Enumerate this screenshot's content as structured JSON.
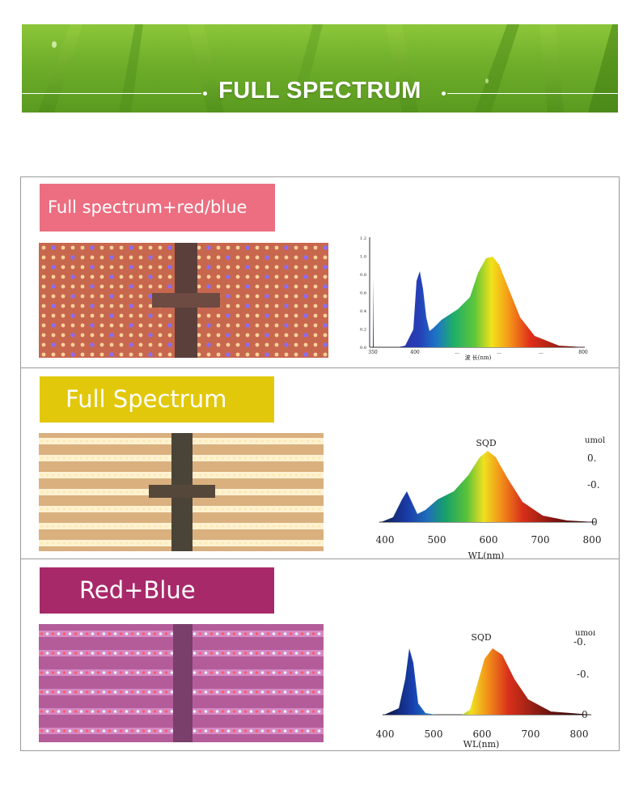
{
  "banner": {
    "title": "FULL SPECTRUM"
  },
  "colors": {
    "label1": "#ec6e80",
    "label2": "#e2c80a",
    "label3": "#a8296a",
    "banner": "#7dba30"
  },
  "panels": [
    {
      "label": "Full spectrum+red/blue",
      "chart": {
        "yticks": [
          "1.2",
          "1.0",
          "0.8",
          "0.6",
          "0.4",
          "0.2",
          "0.0"
        ],
        "xticks": [
          "350",
          "400",
          "...",
          "...",
          "...",
          "800"
        ],
        "xlabel": "波 长(nm)"
      }
    },
    {
      "label": "Full Spectrum",
      "chart": {
        "title": "SQD",
        "unit": "umol",
        "yticks": [
          "0.",
          "-0.",
          "0"
        ],
        "xticks": [
          "400",
          "500",
          "600",
          "700",
          "800"
        ],
        "xlabel": "WL(nm)"
      }
    },
    {
      "label": "Red+Blue",
      "chart": {
        "title": "SQD",
        "unit": "umol",
        "yticks": [
          "-0.",
          "-0.",
          "0"
        ],
        "xticks": [
          "400",
          "500",
          "600",
          "700",
          "800"
        ],
        "xlabel": "WL(nm)"
      }
    }
  ]
}
